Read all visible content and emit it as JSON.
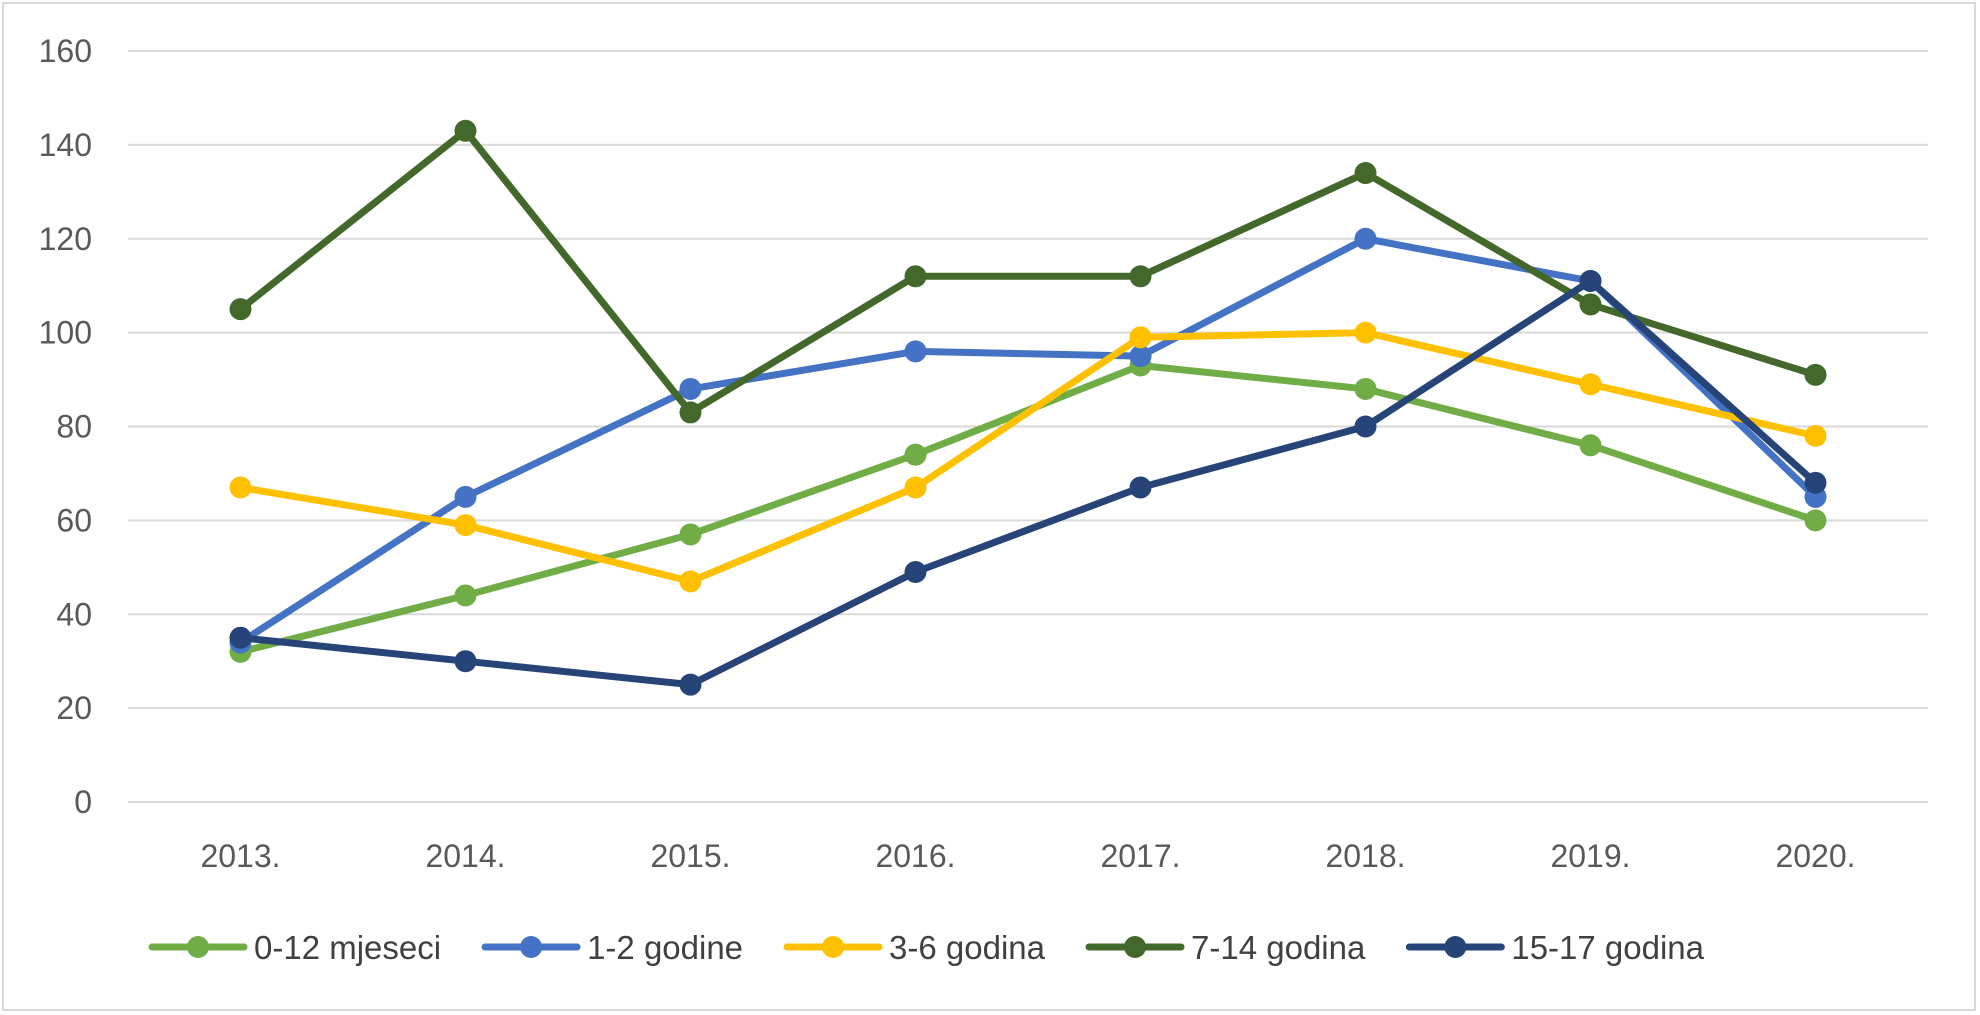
{
  "chart_data": {
    "type": "line",
    "title": "",
    "xlabel": "",
    "ylabel": "",
    "categories": [
      "2013.",
      "2014.",
      "2015.",
      "2016.",
      "2017.",
      "2018.",
      "2019.",
      "2020."
    ],
    "ylim": [
      0,
      160
    ],
    "yticks": [
      0,
      20,
      40,
      60,
      80,
      100,
      120,
      140,
      160
    ],
    "grid": true,
    "legend_position": "bottom",
    "series": [
      {
        "name": "0-12 mjeseci",
        "color": "#70ad47",
        "values": [
          32,
          44,
          57,
          74,
          93,
          88,
          76,
          60
        ]
      },
      {
        "name": "1-2 godine",
        "color": "#4472c4",
        "values": [
          34,
          65,
          88,
          96,
          95,
          120,
          111,
          65
        ]
      },
      {
        "name": "3-6 godina",
        "color": "#ffc000",
        "values": [
          67,
          59,
          47,
          67,
          99,
          100,
          89,
          78
        ]
      },
      {
        "name": "7-14 godina",
        "color": "#43682b",
        "values": [
          105,
          143,
          83,
          112,
          112,
          134,
          106,
          91
        ]
      },
      {
        "name": "15-17 godina",
        "color": "#264478",
        "values": [
          35,
          30,
          25,
          49,
          67,
          80,
          111,
          68
        ]
      }
    ]
  }
}
